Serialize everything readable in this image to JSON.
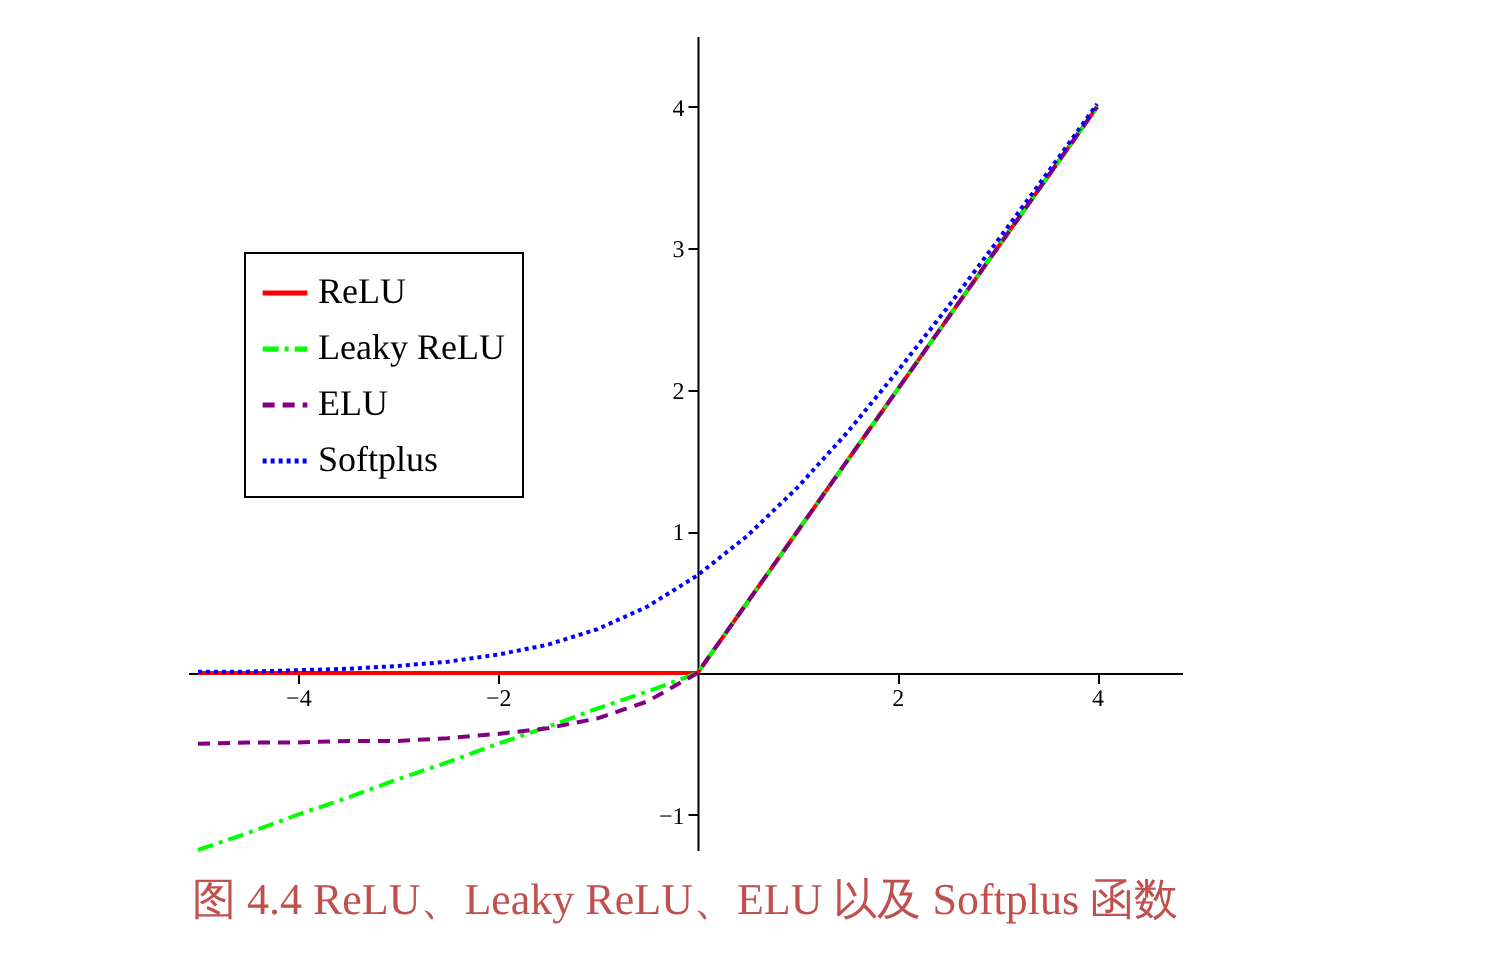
{
  "chart_data": {
    "type": "line",
    "title": "图 4.4   ReLU、Leaky ReLU、ELU 以及 Softplus 函数",
    "x": [
      -5,
      -4.5,
      -4,
      -3.5,
      -3,
      -2.5,
      -2,
      -1.5,
      -1,
      -0.5,
      0,
      0.5,
      1,
      1.5,
      2,
      2.5,
      3,
      3.5,
      4
    ],
    "series": [
      {
        "name": "ReLU",
        "color": "#ff0000",
        "line_style": "solid",
        "values": [
          0,
          0,
          0,
          0,
          0,
          0,
          0,
          0,
          0,
          0,
          0,
          0.5,
          1,
          1.5,
          2,
          2.5,
          3,
          3.5,
          4
        ]
      },
      {
        "name": "Leaky ReLU",
        "color": "#00ff00",
        "line_style": "dashdot",
        "values": [
          -1.25,
          -1.13,
          -1,
          -0.88,
          -0.75,
          -0.63,
          -0.5,
          -0.38,
          -0.25,
          -0.13,
          0,
          0.5,
          1,
          1.5,
          2,
          2.5,
          3,
          3.5,
          4
        ]
      },
      {
        "name": "ELU",
        "color": "#800080",
        "line_style": "dashed",
        "values": [
          -0.5,
          -0.49,
          -0.49,
          -0.48,
          -0.48,
          -0.46,
          -0.43,
          -0.39,
          -0.32,
          -0.2,
          0,
          0.5,
          1,
          1.5,
          2,
          2.5,
          3,
          3.5,
          4
        ]
      },
      {
        "name": "Softplus",
        "color": "#0000ff",
        "line_style": "dotted",
        "values": [
          0.01,
          0.01,
          0.02,
          0.03,
          0.05,
          0.08,
          0.13,
          0.2,
          0.31,
          0.47,
          0.69,
          0.97,
          1.31,
          1.7,
          2.13,
          2.58,
          3.05,
          3.53,
          4.02
        ]
      }
    ],
    "xlim": [
      -5.1,
      4.85
    ],
    "ylim": [
      -1.25,
      4.5
    ],
    "xticks": [
      -4,
      -2,
      2,
      4
    ],
    "yticks": [
      -1,
      1,
      2,
      3,
      4
    ],
    "grid": false,
    "legend": "top left",
    "marker": "none"
  }
}
